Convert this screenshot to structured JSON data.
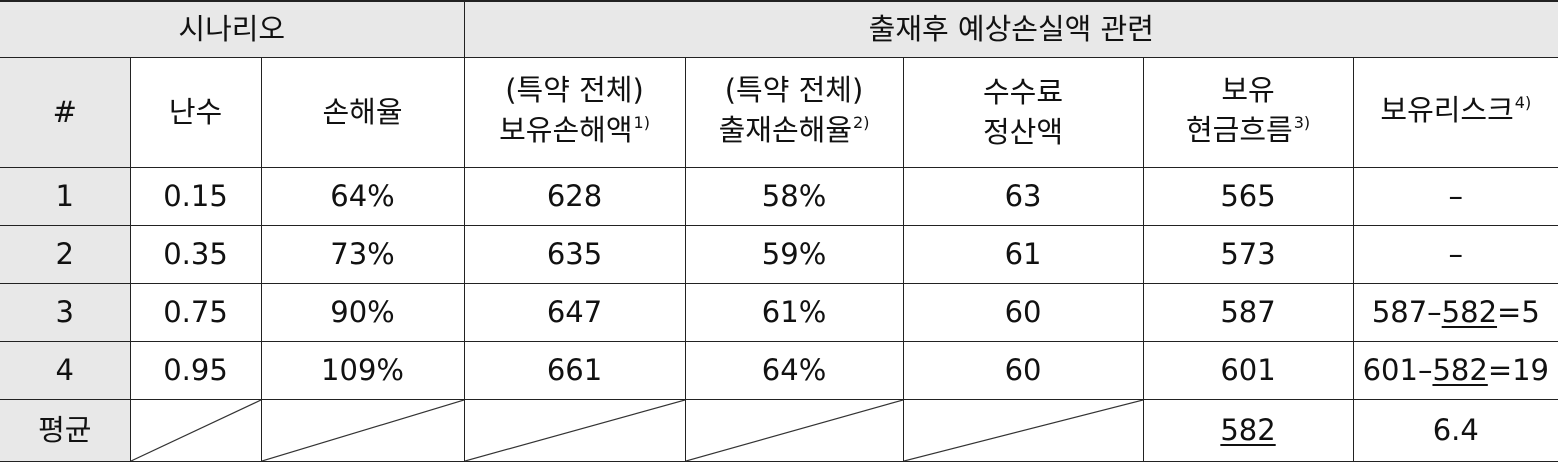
{
  "header": {
    "scenario_group": "시나리오",
    "loss_group": "출재후 예상손실액 관련",
    "columns": {
      "num": "#",
      "random": "난수",
      "loss_ratio": "손해율",
      "retained_loss_l1": "(특약 전체)",
      "retained_loss_l2": "보유손해액",
      "retained_loss_note": "1)",
      "ceded_ratio_l1": "(특약 전체)",
      "ceded_ratio_l2": "출재손해율",
      "ceded_ratio_note": "2)",
      "commission_l1": "수수료",
      "commission_l2": "정산액",
      "cashflow_l1": "보유",
      "cashflow_l2": "현금흐름",
      "cashflow_note": "3)",
      "risk": "보유리스크",
      "risk_note": "4)"
    }
  },
  "rows": [
    {
      "num": "1",
      "random": "0.15",
      "loss_ratio": "64%",
      "retained_loss": "628",
      "ceded_ratio": "58%",
      "commission": "63",
      "cashflow": "565",
      "risk": "–"
    },
    {
      "num": "2",
      "random": "0.35",
      "loss_ratio": "73%",
      "retained_loss": "635",
      "ceded_ratio": "59%",
      "commission": "61",
      "cashflow": "573",
      "risk": "–"
    },
    {
      "num": "3",
      "random": "0.75",
      "loss_ratio": "90%",
      "retained_loss": "647",
      "ceded_ratio": "61%",
      "commission": "60",
      "cashflow": "587",
      "risk_a": "587–",
      "risk_b": "582",
      "risk_c": "=5"
    },
    {
      "num": "4",
      "random": "0.95",
      "loss_ratio": "109%",
      "retained_loss": "661",
      "ceded_ratio": "64%",
      "commission": "60",
      "cashflow": "601",
      "risk_a": "601–",
      "risk_b": "582",
      "risk_c": "=19"
    }
  ],
  "average": {
    "label": "평균",
    "cashflow": "582",
    "risk": "6.4"
  }
}
